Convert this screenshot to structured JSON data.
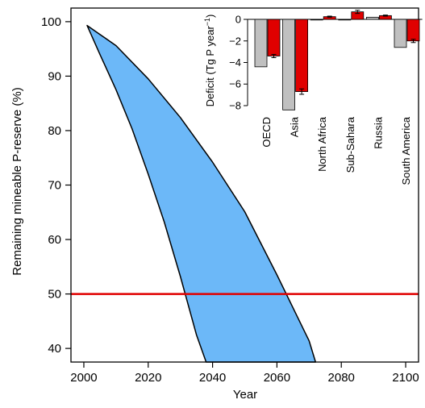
{
  "chart_data": [
    {
      "type": "area",
      "xlabel": "Year",
      "ylabel": "Remaining mineable P-reserve (%)",
      "xlim": [
        1996,
        2104
      ],
      "ylim": [
        37.5,
        102.5
      ],
      "xticks": [
        2000,
        2020,
        2040,
        2060,
        2080,
        2100
      ],
      "yticks": [
        40,
        50,
        60,
        70,
        80,
        90,
        100
      ],
      "grid": false,
      "band": {
        "fill_color": "#6cb8f8",
        "edge_color": "#000000",
        "upper": {
          "x": [
            2001,
            2010,
            2020,
            2030,
            2040,
            2050,
            2060,
            2070,
            2072
          ],
          "y": [
            99.3,
            95.6,
            89.5,
            82.4,
            74.2,
            65.1,
            53.5,
            41.4,
            37.5
          ]
        },
        "lower": {
          "x": [
            2001,
            2005,
            2010,
            2015,
            2020,
            2025,
            2030,
            2035,
            2038
          ],
          "y": [
            99.3,
            94.0,
            87.5,
            80.3,
            72.0,
            63.2,
            53.2,
            42.5,
            37.5
          ]
        }
      },
      "reference_line": {
        "y": 50,
        "color": "#e00000"
      }
    },
    {
      "type": "bar",
      "ylabel": "Deficit (Tg P year",
      "ylabel_sup": "−1",
      "ylabel_close": ")",
      "ylim": [
        -8.3,
        0.6
      ],
      "yticks": [
        0,
        -2,
        -4,
        -6,
        -8
      ],
      "categories": [
        "OECD",
        "Asia",
        "North Africa",
        "Sub-Sahara",
        "Russia",
        "South America"
      ],
      "series": [
        {
          "color": "#c0c0c0",
          "values": [
            -4.4,
            -8.4,
            0.0,
            -0.05,
            0.2,
            -2.6
          ]
        },
        {
          "color": "#e00000",
          "values": [
            -3.4,
            -6.7,
            0.25,
            0.7,
            0.35,
            -2.0
          ],
          "errors": [
            0.15,
            0.25,
            0.05,
            0.15,
            0.05,
            0.15
          ]
        }
      ]
    }
  ]
}
